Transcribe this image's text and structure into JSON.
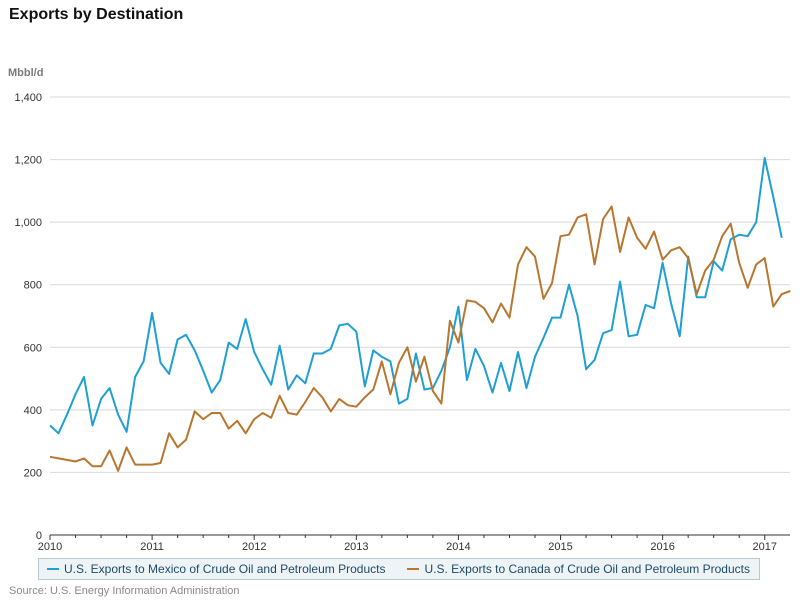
{
  "title": "Exports by Destination",
  "source": "Source: U.S. Energy Information Administration",
  "chart_data": {
    "type": "line",
    "ylabel": "Mbbl/d",
    "ylim": [
      0,
      1400
    ],
    "yticks": [
      0,
      200,
      400,
      600,
      800,
      1000,
      1200,
      1400
    ],
    "ytick_labels": [
      "0",
      "200",
      "400",
      "600",
      "800",
      "1,000",
      "1,200",
      "1,400"
    ],
    "xlim": [
      2010,
      2017.12
    ],
    "xticks": [
      2010,
      2011,
      2012,
      2013,
      2014,
      2015,
      2016,
      2017
    ],
    "xtick_labels": [
      "2010",
      "2011",
      "2012",
      "2013",
      "2014",
      "2015",
      "2016",
      "2017"
    ],
    "grid": true,
    "legend_position": "bottom",
    "series": [
      {
        "name": "U.S. Exports to Mexico of Crude Oil and Petroleum Products",
        "color": "#1f9fd4",
        "start": "2010-01",
        "values": [
          350,
          325,
          385,
          450,
          505,
          350,
          435,
          470,
          385,
          330,
          505,
          555,
          710,
          550,
          515,
          625,
          640,
          590,
          525,
          455,
          495,
          615,
          595,
          690,
          585,
          530,
          480,
          605,
          465,
          510,
          485,
          580,
          580,
          595,
          670,
          675,
          650,
          475,
          590,
          570,
          555,
          420,
          435,
          580,
          465,
          470,
          525,
          600,
          730,
          495,
          595,
          540,
          455,
          550,
          460,
          585,
          470,
          570,
          630,
          695,
          695,
          800,
          700,
          530,
          560,
          645,
          655,
          810,
          635,
          640,
          735,
          725,
          870,
          740,
          635,
          890,
          760,
          760,
          875,
          845,
          945,
          960,
          955,
          1000,
          1205,
          1080,
          950
        ]
      },
      {
        "name": "U.S. Exports to Canada of Crude Oil and Petroleum Products",
        "color": "#b8762e",
        "start": "2010-01",
        "values": [
          250,
          245,
          240,
          235,
          245,
          220,
          220,
          270,
          205,
          280,
          225,
          225,
          225,
          230,
          325,
          280,
          305,
          395,
          370,
          390,
          390,
          340,
          365,
          325,
          370,
          390,
          375,
          445,
          390,
          385,
          425,
          470,
          440,
          395,
          435,
          415,
          410,
          440,
          465,
          555,
          450,
          550,
          600,
          490,
          570,
          460,
          420,
          685,
          615,
          750,
          745,
          725,
          680,
          740,
          695,
          865,
          920,
          890,
          755,
          805,
          955,
          960,
          1015,
          1025,
          865,
          1010,
          1050,
          905,
          1015,
          950,
          915,
          970,
          880,
          910,
          920,
          885,
          770,
          845,
          880,
          955,
          995,
          870,
          790,
          865,
          885,
          730,
          770,
          780
        ]
      }
    ]
  }
}
